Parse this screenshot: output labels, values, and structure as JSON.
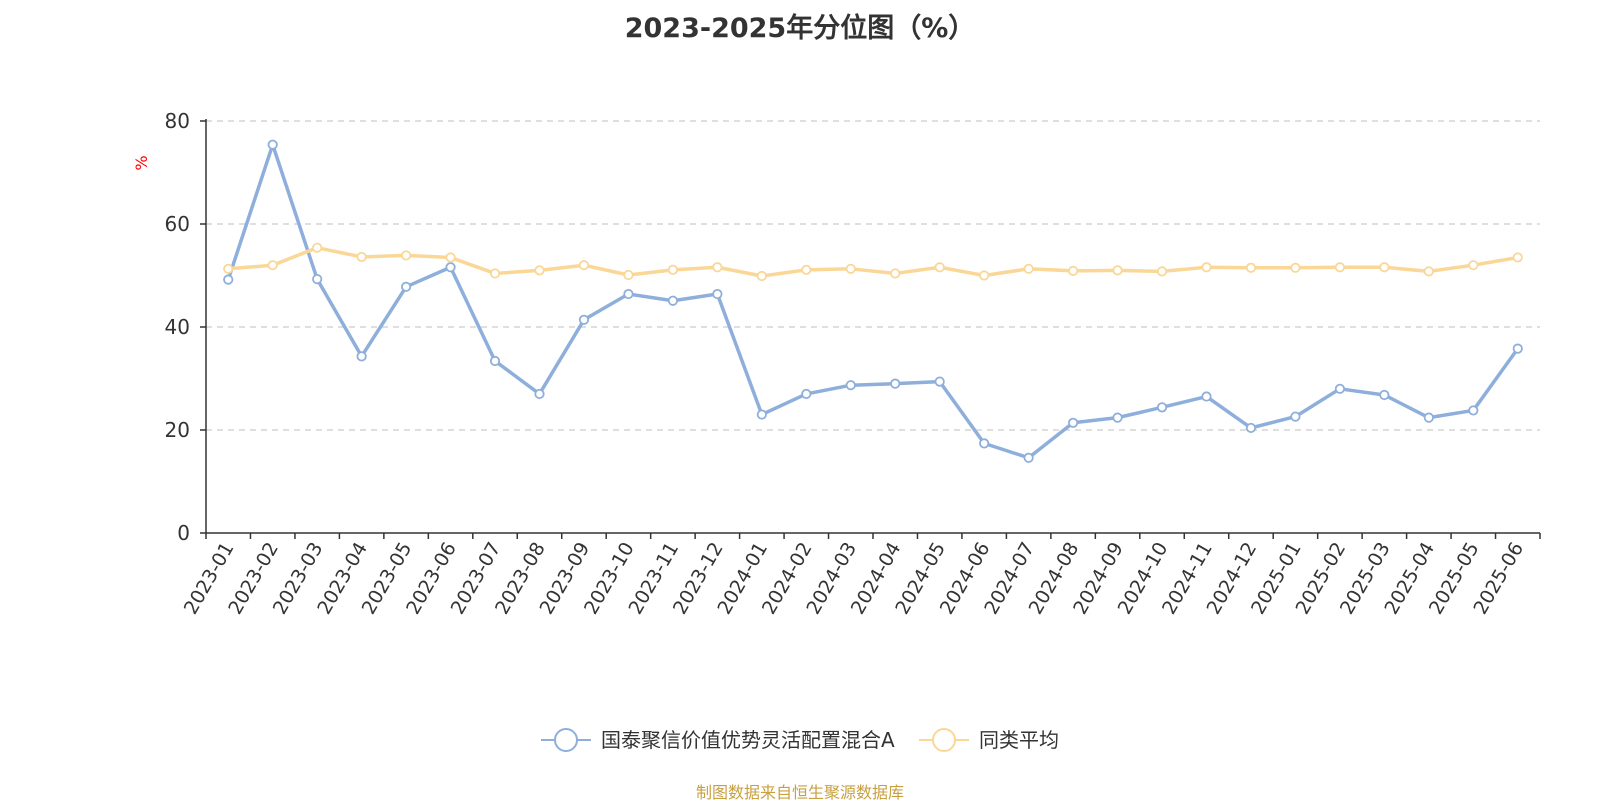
{
  "chart_data": {
    "type": "line",
    "title": "2023-2025年分位图（%）",
    "ylabel": "%",
    "xlabel": "",
    "ylim": [
      0,
      80
    ],
    "yticks": [
      0,
      20,
      40,
      60,
      80
    ],
    "grid": true,
    "legend_placement": "bottom-center",
    "categories": [
      "2023-01",
      "2023-02",
      "2023-03",
      "2023-04",
      "2023-05",
      "2023-06",
      "2023-07",
      "2023-08",
      "2023-09",
      "2023-10",
      "2023-11",
      "2023-12",
      "2024-01",
      "2024-02",
      "2024-03",
      "2024-04",
      "2024-05",
      "2024-06",
      "2024-07",
      "2024-08",
      "2024-09",
      "2024-10",
      "2024-11",
      "2024-12",
      "2025-01",
      "2025-02",
      "2025-03",
      "2025-04",
      "2025-05",
      "2025-06"
    ],
    "series": [
      {
        "name": "国泰聚信价值优势灵活配置混合A",
        "color": "#8eafdb",
        "values": [
          49.2,
          75.4,
          49.3,
          34.3,
          47.8,
          51.6,
          33.4,
          27.0,
          41.4,
          46.4,
          45.1,
          46.4,
          23.0,
          27.0,
          28.7,
          29.0,
          29.4,
          17.4,
          14.6,
          21.4,
          22.4,
          24.4,
          26.5,
          20.4,
          22.6,
          28.0,
          26.8,
          22.4,
          23.8,
          35.8
        ]
      },
      {
        "name": "同类平均",
        "color": "#fad797",
        "values": [
          51.3,
          52.0,
          55.4,
          53.6,
          53.9,
          53.5,
          50.4,
          51.0,
          52.0,
          50.1,
          51.1,
          51.6,
          49.9,
          51.1,
          51.3,
          50.4,
          51.6,
          50.0,
          51.3,
          50.9,
          51.0,
          50.8,
          51.6,
          51.5,
          51.5,
          51.6,
          51.6,
          50.8,
          52.0,
          53.5
        ]
      }
    ]
  },
  "colors": {
    "unit_label": "#ff0000",
    "footer": "#c8a040",
    "axis": "#333333",
    "grid": "#cccccc"
  },
  "footer": {
    "source_text": "制图数据来自恒生聚源数据库"
  }
}
